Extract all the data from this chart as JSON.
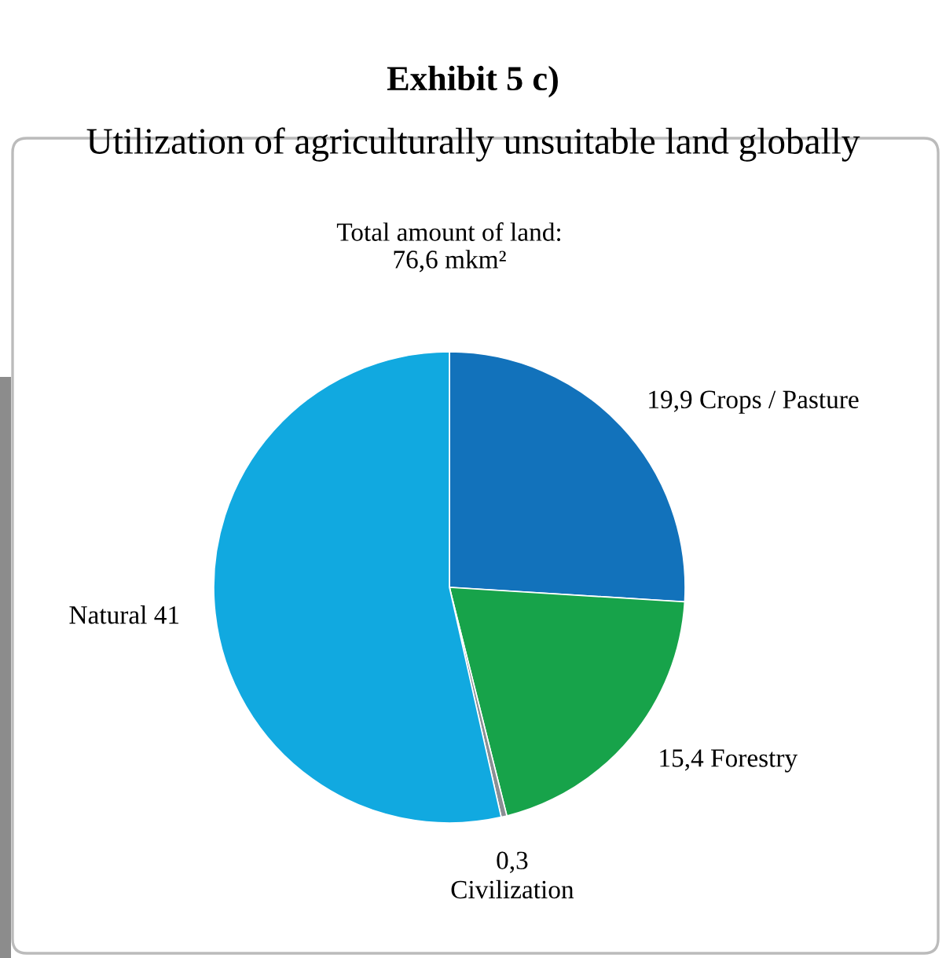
{
  "chart_data": {
    "type": "pie",
    "title": "Exhibit 5 c)",
    "subtitle": "Utilization of agriculturally unsuitable land globally",
    "annotations": [
      "Total amount of land:\n76,6 mkm²"
    ],
    "categories": [
      "Crops / Pasture",
      "Forestry",
      "Civilization",
      "Natural"
    ],
    "values": [
      19.9,
      15.4,
      0.3,
      41
    ],
    "value_labels": [
      "19,9",
      "15,4",
      "0,3",
      "41"
    ],
    "colors": [
      "#1272bb",
      "#17a34a",
      "#8a8f94",
      "#11a9e0"
    ]
  }
}
